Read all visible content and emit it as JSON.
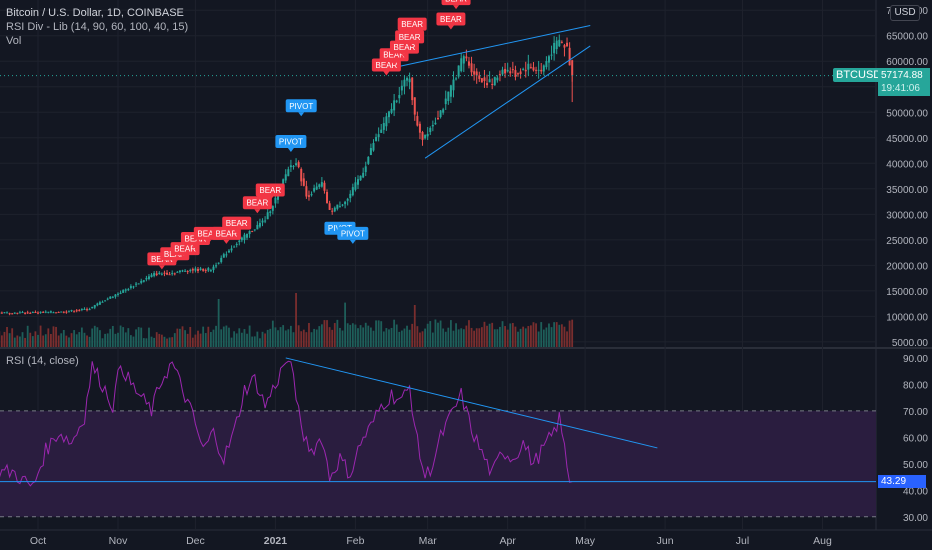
{
  "header": {
    "title": "Bitcoin / U.S. Dollar, 1D, COINBASE",
    "indicator": "RSI Div - Lib (14, 90, 60, 100, 40, 15)",
    "volume": "Vol",
    "currency_button": "USD"
  },
  "price_badge": {
    "symbol": "BTCUSD",
    "price": "57174.88",
    "countdown": "19:41:06"
  },
  "rsi_panel": {
    "label": "RSI (14, close)",
    "last_value": "43.29"
  },
  "colors": {
    "background": "#131722",
    "bull": "#26a69a",
    "bear": "#ef5350",
    "bear_label": "#f23645",
    "pivot_label": "#2196f3",
    "rsi_line": "#9c27b0",
    "rsi_band": "#2a1d3f",
    "trendline": "#2196f3"
  },
  "chart_data": [
    {
      "type": "candlestick",
      "title": "Bitcoin / U.S. Dollar, 1D, COINBASE",
      "y_ticks": [
        5000,
        10000,
        15000,
        20000,
        25000,
        30000,
        35000,
        40000,
        45000,
        50000,
        55000,
        60000,
        65000,
        70000
      ],
      "y_tick_labels": [
        "5000.00",
        "10000.00",
        "15000.00",
        "20000.00",
        "25000.00",
        "30000.00",
        "35000.00",
        "40000.00",
        "45000.00",
        "50000.00",
        "55000.00",
        "60000.00",
        "65000.00",
        "70000.00"
      ],
      "ylim": [
        4000,
        72000
      ],
      "x_labels": [
        "Oct",
        "Nov",
        "Dec",
        "2021",
        "Feb",
        "Mar",
        "Apr",
        "May",
        "Jun",
        "Jul",
        "Aug"
      ],
      "x_label_days": [
        0,
        31,
        61,
        92,
        123,
        151,
        182,
        212,
        243,
        273,
        304
      ],
      "last_price": 57174.88,
      "close_series": [
        {
          "day": -8,
          "value": 10700
        },
        {
          "day": 10,
          "value": 10900
        },
        {
          "day": 20,
          "value": 11500
        },
        {
          "day": 25,
          "value": 13000
        },
        {
          "day": 35,
          "value": 15500
        },
        {
          "day": 45,
          "value": 18300
        },
        {
          "day": 52,
          "value": 18500
        },
        {
          "day": 58,
          "value": 19100
        },
        {
          "day": 67,
          "value": 19200
        },
        {
          "day": 75,
          "value": 23500
        },
        {
          "day": 82,
          "value": 26500
        },
        {
          "day": 88,
          "value": 29000
        },
        {
          "day": 92,
          "value": 33000
        },
        {
          "day": 97,
          "value": 39000
        },
        {
          "day": 100,
          "value": 40500
        },
        {
          "day": 104,
          "value": 33500
        },
        {
          "day": 110,
          "value": 36000
        },
        {
          "day": 113,
          "value": 30500
        },
        {
          "day": 120,
          "value": 33000
        },
        {
          "day": 126,
          "value": 38500
        },
        {
          "day": 130,
          "value": 44000
        },
        {
          "day": 134,
          "value": 47500
        },
        {
          "day": 138,
          "value": 52000
        },
        {
          "day": 141,
          "value": 55000
        },
        {
          "day": 144,
          "value": 57000
        },
        {
          "day": 146,
          "value": 49000
        },
        {
          "day": 149,
          "value": 45000
        },
        {
          "day": 154,
          "value": 48500
        },
        {
          "day": 158,
          "value": 52000
        },
        {
          "day": 162,
          "value": 57500
        },
        {
          "day": 165,
          "value": 61000
        },
        {
          "day": 170,
          "value": 57000
        },
        {
          "day": 176,
          "value": 55500
        },
        {
          "day": 180,
          "value": 58500
        },
        {
          "day": 185,
          "value": 57500
        },
        {
          "day": 190,
          "value": 59000
        },
        {
          "day": 195,
          "value": 58000
        },
        {
          "day": 199,
          "value": 62000
        },
        {
          "day": 202,
          "value": 64000
        },
        {
          "day": 205,
          "value": 62500
        },
        {
          "day": 207,
          "value": 57174.88
        }
      ],
      "volume_series": [
        {
          "day": 70,
          "value": 20000
        },
        {
          "day": 100,
          "value": 22500
        },
        {
          "day": 119,
          "value": 18500
        },
        {
          "day": 146,
          "value": 17500
        },
        {
          "day": 206,
          "value": 11000
        }
      ],
      "annotations": [
        {
          "text": "BEAR",
          "day": 48,
          "value": 20000
        },
        {
          "text": "BEAR",
          "day": 53,
          "value": 21000
        },
        {
          "text": "BEAR",
          "day": 57,
          "value": 22000
        },
        {
          "text": "BEAR",
          "day": 61,
          "value": 24000
        },
        {
          "text": "BEAR",
          "day": 66,
          "value": 25000
        },
        {
          "text": "BEAR",
          "day": 73,
          "value": 25000
        },
        {
          "text": "BEAR",
          "day": 77,
          "value": 27000
        },
        {
          "text": "BEAR",
          "day": 85,
          "value": 31000
        },
        {
          "text": "BEAR",
          "day": 90,
          "value": 33500
        },
        {
          "text": "PIVOT",
          "day": 98,
          "value": 43000
        },
        {
          "text": "PIVOT",
          "day": 102,
          "value": 50000
        },
        {
          "text": "PIVOT",
          "day": 117,
          "value": 26000
        },
        {
          "text": "PIVOT",
          "day": 122,
          "value": 25000
        },
        {
          "text": "BEAR",
          "day": 135,
          "value": 58000
        },
        {
          "text": "BEAR",
          "day": 138,
          "value": 60000
        },
        {
          "text": "BEAR",
          "day": 142,
          "value": 61500
        },
        {
          "text": "BEAR",
          "day": 144,
          "value": 63500
        },
        {
          "text": "BEAR",
          "day": 145,
          "value": 66000
        },
        {
          "text": "BEAR",
          "day": 160,
          "value": 67000
        },
        {
          "text": "BEAR",
          "day": 162,
          "value": 71000
        },
        {
          "text": "BEAR",
          "day": 202,
          "value": 73000
        }
      ],
      "trendlines": [
        {
          "from": {
            "day": 140,
            "value": 59000
          },
          "to": {
            "day": 214,
            "value": 67000
          }
        },
        {
          "from": {
            "day": 150,
            "value": 41000
          },
          "to": {
            "day": 214,
            "value": 63000
          }
        }
      ]
    },
    {
      "type": "line",
      "title": "RSI (14, close)",
      "y_ticks": [
        30,
        40,
        50,
        60,
        70,
        80,
        90
      ],
      "y_tick_labels": [
        "30.00",
        "40.00",
        "50.00",
        "60.00",
        "70.00",
        "80.00",
        "90.00"
      ],
      "ylim": [
        25,
        93
      ],
      "upper_band": 70,
      "lower_band": 30,
      "band_fill": [
        30,
        70
      ],
      "horizontal_line": 43.29,
      "series": [
        {
          "values": [
            {
              "day": -10,
              "value": 47
            },
            {
              "day": -6,
              "value": 44
            },
            {
              "day": -2,
              "value": 41
            },
            {
              "day": 3,
              "value": 55
            },
            {
              "day": 8,
              "value": 62
            },
            {
              "day": 13,
              "value": 58
            },
            {
              "day": 18,
              "value": 68
            },
            {
              "day": 21,
              "value": 87
            },
            {
              "day": 25,
              "value": 80
            },
            {
              "day": 29,
              "value": 72
            },
            {
              "day": 32,
              "value": 88
            },
            {
              "day": 36,
              "value": 80
            },
            {
              "day": 40,
              "value": 75
            },
            {
              "day": 44,
              "value": 70
            },
            {
              "day": 48,
              "value": 82
            },
            {
              "day": 52,
              "value": 88
            },
            {
              "day": 56,
              "value": 78
            },
            {
              "day": 60,
              "value": 68
            },
            {
              "day": 64,
              "value": 55
            },
            {
              "day": 68,
              "value": 62
            },
            {
              "day": 72,
              "value": 52
            },
            {
              "day": 76,
              "value": 62
            },
            {
              "day": 80,
              "value": 78
            },
            {
              "day": 84,
              "value": 82
            },
            {
              "day": 88,
              "value": 72
            },
            {
              "day": 92,
              "value": 80
            },
            {
              "day": 96,
              "value": 89
            },
            {
              "day": 99,
              "value": 84
            },
            {
              "day": 102,
              "value": 62
            },
            {
              "day": 106,
              "value": 55
            },
            {
              "day": 110,
              "value": 60
            },
            {
              "day": 113,
              "value": 45
            },
            {
              "day": 117,
              "value": 52
            },
            {
              "day": 121,
              "value": 46
            },
            {
              "day": 125,
              "value": 58
            },
            {
              "day": 129,
              "value": 64
            },
            {
              "day": 133,
              "value": 72
            },
            {
              "day": 137,
              "value": 76
            },
            {
              "day": 141,
              "value": 74
            },
            {
              "day": 144,
              "value": 79
            },
            {
              "day": 147,
              "value": 58
            },
            {
              "day": 150,
              "value": 45
            },
            {
              "day": 153,
              "value": 50
            },
            {
              "day": 156,
              "value": 60
            },
            {
              "day": 160,
              "value": 68
            },
            {
              "day": 164,
              "value": 76
            },
            {
              "day": 168,
              "value": 63
            },
            {
              "day": 172,
              "value": 54
            },
            {
              "day": 176,
              "value": 46
            },
            {
              "day": 180,
              "value": 55
            },
            {
              "day": 184,
              "value": 52
            },
            {
              "day": 188,
              "value": 58
            },
            {
              "day": 192,
              "value": 50
            },
            {
              "day": 196,
              "value": 56
            },
            {
              "day": 200,
              "value": 62
            },
            {
              "day": 202,
              "value": 67
            },
            {
              "day": 204,
              "value": 56
            },
            {
              "day": 206,
              "value": 44
            },
            {
              "day": 207,
              "value": 43.29
            }
          ]
        }
      ],
      "trendlines": [
        {
          "from": {
            "day": 96,
            "value": 90
          },
          "to": {
            "day": 240,
            "value": 56
          }
        }
      ]
    }
  ]
}
